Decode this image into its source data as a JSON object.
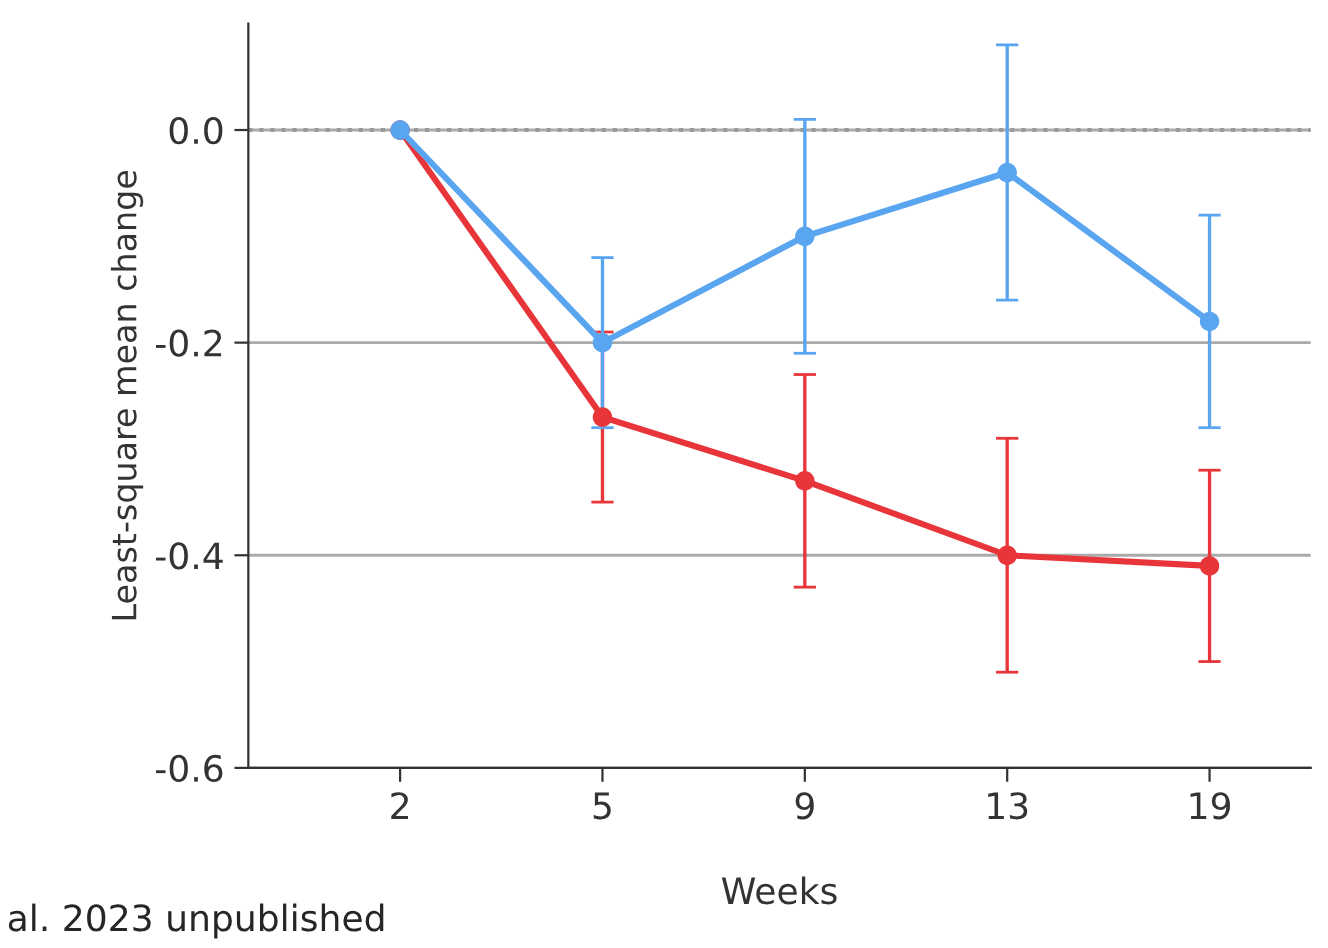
{
  "chart_data": {
    "type": "line",
    "ylabel": "Least-square mean change",
    "xlabel": "Weeks",
    "categories": [
      "2",
      "5",
      "9",
      "13",
      "19"
    ],
    "series": [
      {
        "color": "#e8353a",
        "values": [
          0,
          -0.27,
          -0.33,
          -0.4,
          -0.41
        ],
        "errors": [
          null,
          [
            -0.35,
            -0.19
          ],
          [
            -0.43,
            -0.23
          ],
          [
            -0.51,
            -0.29
          ],
          [
            -0.5,
            -0.32
          ]
        ]
      },
      {
        "color": "#5aa5f0",
        "values": [
          0,
          -0.2,
          -0.1,
          -0.04,
          -0.18
        ],
        "errors": [
          null,
          [
            -0.28,
            -0.12
          ],
          [
            -0.21,
            0.01
          ],
          [
            -0.16,
            0.08
          ],
          [
            -0.28,
            -0.08
          ]
        ]
      }
    ],
    "ylim": [
      -0.6,
      0.1
    ],
    "yticks": [
      {
        "value": 0,
        "label": "0.0"
      },
      {
        "value": -0.2,
        "label": "-0.2"
      },
      {
        "value": -0.4,
        "label": "-0.4"
      },
      {
        "value": -0.6,
        "label": "-0.6"
      }
    ],
    "grid": "y",
    "marker": "circle",
    "line_style": "solid",
    "ref_lines": [
      {
        "axis": "y",
        "value": 0,
        "color": "#999999",
        "line_style": "dotted"
      }
    ],
    "annotations": [
      "al. 2023 unpublished"
    ]
  }
}
